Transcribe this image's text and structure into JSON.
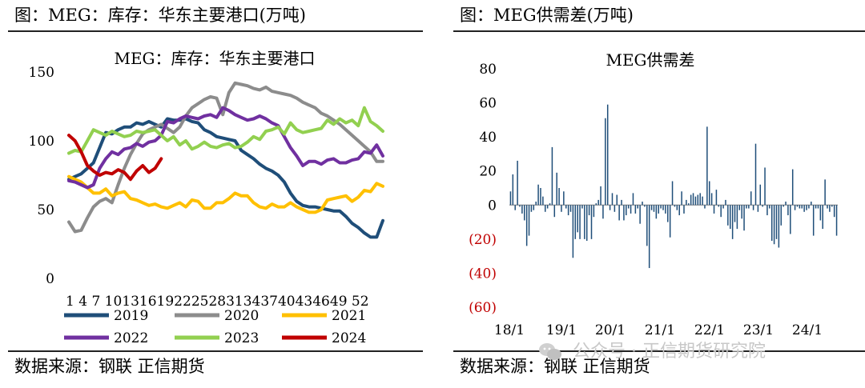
{
  "left_panel": {
    "header": "图：MEG：库存：华东主要港口(万吨)",
    "source": "数据来源：钢联    正信期货"
  },
  "right_panel": {
    "header": "图：MEG供需差(万吨)",
    "source": "数据来源：钢联    正信期货"
  },
  "watermark": "公众号 · 正信期货研究院",
  "chart_data": [
    {
      "type": "line",
      "title": "MEG：库存：华东主要港口",
      "ylim": [
        0,
        150
      ],
      "yticks": [
        "0",
        "50",
        "100",
        "150"
      ],
      "x_tick_text": "1 4 7 1013161922252831343740434649 52",
      "x_tick_labels": [
        "1",
        "4",
        "7",
        "10",
        "13",
        "16",
        "19",
        "22",
        "25",
        "28",
        "31",
        "34",
        "37",
        "40",
        "43",
        "46",
        "49",
        "52"
      ],
      "legend_position": "bottom",
      "series": [
        {
          "name": "2019",
          "color": "#1f4e79",
          "weeks": [
            1,
            2,
            3,
            4,
            5,
            6,
            7,
            8,
            9,
            10,
            11,
            12,
            13,
            14,
            15,
            16,
            17,
            18,
            19,
            20,
            21,
            22,
            23,
            24,
            25,
            26,
            27,
            28,
            29,
            30,
            31,
            32,
            33,
            34,
            35,
            36,
            37,
            38,
            39,
            40,
            41,
            42,
            43,
            44,
            45,
            46,
            47,
            48,
            49,
            50,
            51,
            52
          ],
          "values": [
            72,
            74,
            76,
            80,
            84,
            95,
            106,
            105,
            108,
            110,
            110,
            113,
            112,
            114,
            112,
            110,
            116,
            115,
            115,
            116,
            114,
            113,
            108,
            106,
            103,
            102,
            101,
            100,
            93,
            90,
            87,
            83,
            80,
            78,
            75,
            70,
            62,
            56,
            53,
            52,
            52,
            51,
            50,
            49,
            49,
            45,
            40,
            37,
            33,
            30,
            30,
            42
          ]
        },
        {
          "name": "2020",
          "color": "#8c8c8c",
          "weeks": [
            1,
            2,
            3,
            4,
            5,
            6,
            7,
            8,
            9,
            10,
            11,
            12,
            13,
            14,
            15,
            16,
            17,
            18,
            19,
            20,
            21,
            22,
            23,
            24,
            25,
            26,
            27,
            28,
            29,
            30,
            31,
            32,
            33,
            34,
            35,
            36,
            37,
            38,
            39,
            40,
            41,
            42,
            43,
            44,
            45,
            46,
            47,
            48,
            49,
            50,
            51,
            52
          ],
          "values": [
            41,
            34,
            35,
            44,
            52,
            56,
            58,
            55,
            68,
            80,
            90,
            98,
            105,
            108,
            110,
            112,
            109,
            106,
            110,
            118,
            124,
            127,
            130,
            132,
            131,
            119,
            135,
            142,
            141,
            140,
            138,
            137,
            139,
            136,
            135,
            134,
            133,
            131,
            128,
            126,
            124,
            120,
            118,
            115,
            112,
            108,
            104,
            100,
            96,
            92,
            85,
            85
          ]
        },
        {
          "name": "2021",
          "color": "#ffc000",
          "weeks": [
            1,
            2,
            3,
            4,
            5,
            6,
            7,
            8,
            9,
            10,
            11,
            12,
            13,
            14,
            15,
            16,
            17,
            18,
            19,
            20,
            21,
            22,
            23,
            24,
            25,
            26,
            27,
            28,
            29,
            30,
            31,
            32,
            33,
            34,
            35,
            36,
            37,
            38,
            39,
            40,
            41,
            42,
            43,
            44,
            45,
            46,
            47,
            48,
            49,
            50,
            51,
            52
          ],
          "values": [
            74,
            72,
            70,
            66,
            62,
            62,
            65,
            60,
            62,
            63,
            58,
            57,
            55,
            53,
            54,
            52,
            51,
            53,
            55,
            52,
            57,
            56,
            51,
            51,
            55,
            55,
            58,
            62,
            60,
            60,
            55,
            52,
            51,
            54,
            52,
            52,
            55,
            52,
            50,
            48,
            48,
            50,
            57,
            58,
            59,
            60,
            56,
            59,
            64,
            63,
            69,
            67
          ]
        },
        {
          "name": "2022",
          "color": "#7030a0",
          "weeks": [
            1,
            2,
            3,
            4,
            5,
            6,
            7,
            8,
            9,
            10,
            11,
            12,
            13,
            14,
            15,
            16,
            17,
            18,
            19,
            20,
            21,
            22,
            23,
            24,
            25,
            26,
            27,
            28,
            29,
            30,
            31,
            32,
            33,
            34,
            35,
            36,
            37,
            38,
            39,
            40,
            41,
            42,
            43,
            44,
            45,
            46,
            47,
            48,
            49,
            50,
            51,
            52
          ],
          "values": [
            71,
            70,
            68,
            66,
            68,
            80,
            87,
            92,
            90,
            94,
            95,
            98,
            96,
            99,
            100,
            104,
            114,
            113,
            116,
            118,
            117,
            116,
            118,
            119,
            117,
            124,
            122,
            119,
            117,
            115,
            116,
            118,
            116,
            113,
            111,
            103,
            95,
            89,
            82,
            85,
            85,
            83,
            86,
            87,
            84,
            84,
            86,
            87,
            92,
            91,
            97,
            89
          ]
        },
        {
          "name": "2023",
          "color": "#92d050",
          "weeks": [
            1,
            2,
            3,
            4,
            5,
            6,
            7,
            8,
            9,
            10,
            11,
            12,
            13,
            14,
            15,
            16,
            17,
            18,
            19,
            20,
            21,
            22,
            23,
            24,
            25,
            26,
            27,
            28,
            29,
            30,
            31,
            32,
            33,
            34,
            35,
            36,
            37,
            38,
            39,
            40,
            41,
            42,
            43,
            44,
            45,
            46,
            47,
            48,
            49,
            50,
            51,
            52
          ],
          "values": [
            91,
            93,
            92,
            100,
            108,
            106,
            104,
            107,
            105,
            103,
            104,
            107,
            106,
            107,
            108,
            104,
            100,
            103,
            97,
            100,
            94,
            96,
            99,
            96,
            95,
            97,
            98,
            95,
            96,
            99,
            103,
            101,
            107,
            108,
            110,
            105,
            113,
            108,
            106,
            107,
            108,
            109,
            115,
            112,
            116,
            113,
            115,
            111,
            124,
            114,
            111,
            107
          ]
        },
        {
          "name": "2024",
          "color": "#c00000",
          "weeks": [
            1,
            2,
            3,
            4,
            5,
            6,
            7,
            8,
            9,
            10,
            11,
            12,
            13,
            14,
            15,
            16
          ],
          "values": [
            104,
            100,
            92,
            82,
            78,
            75,
            77,
            76,
            79,
            77,
            72,
            78,
            82,
            77,
            80,
            87
          ]
        }
      ]
    },
    {
      "type": "bar",
      "title": "MEG供需差",
      "ylim": [
        -60,
        80
      ],
      "yticks": [
        "(60)",
        "(40)",
        "(20)",
        "0",
        "20",
        "40",
        "60",
        "80"
      ],
      "xticks": [
        "18/1",
        "19/1",
        "20/1",
        "21/1",
        "22/1",
        "23/1",
        "24/1"
      ],
      "color": "#1f4e79",
      "negative_label_color": "#c00000",
      "values": [
        8,
        18,
        -3,
        26,
        -1,
        -5,
        -9,
        -24,
        -18,
        -4,
        -3,
        2,
        12,
        10,
        5,
        -4,
        -2,
        1,
        34,
        -7,
        19,
        10,
        -4,
        8,
        -2,
        -6,
        -4,
        -31,
        -20,
        -16,
        -20,
        -2,
        -20,
        -21,
        -6,
        -20,
        -7,
        1,
        3,
        11,
        -8,
        51,
        59,
        -3,
        7,
        -4,
        6,
        -9,
        3,
        -9,
        -6,
        -2,
        -5,
        7,
        -5,
        -2,
        -11,
        2,
        -1,
        -24,
        -37,
        -3,
        -4,
        -8,
        -5,
        -2,
        -3,
        -5,
        -10,
        -19,
        14,
        -1,
        -3,
        -6,
        8,
        -5,
        3,
        1,
        6,
        7,
        5,
        6,
        7,
        5,
        -2,
        46,
        14,
        7,
        -5,
        9,
        -1,
        -7,
        -2,
        3,
        -12,
        -14,
        -20,
        -10,
        -14,
        -3,
        -8,
        -15,
        -2,
        -2,
        8,
        -3,
        36,
        -4,
        12,
        -1,
        22,
        -6,
        -2,
        -21,
        -23,
        -20,
        -25,
        -12,
        -1,
        2,
        -6,
        -17,
        21,
        -3,
        -1,
        -2,
        -2,
        -4,
        -3,
        -2,
        2,
        -18,
        -2,
        -2,
        -9,
        -14,
        15,
        -2,
        -4,
        -1,
        -7,
        -18
      ]
    }
  ]
}
